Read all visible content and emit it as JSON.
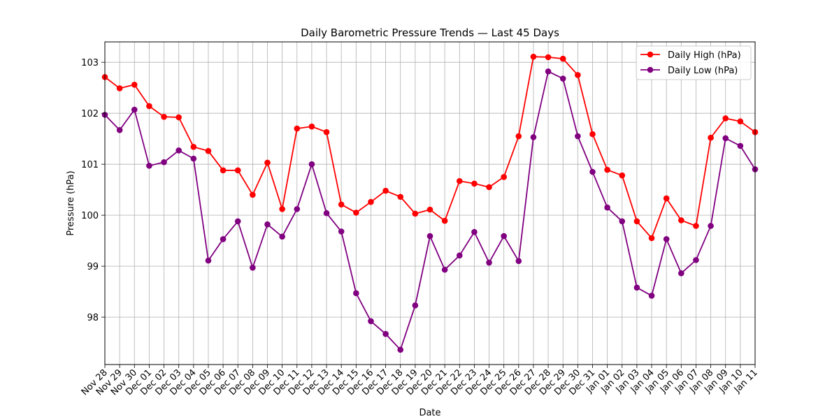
{
  "chart_data": {
    "type": "line",
    "title": "Daily Barometric Pressure Trends — Last 45 Days",
    "xlabel": "Date",
    "ylabel": "Pressure (hPa)",
    "ylim": [
      97.07,
      103.4
    ],
    "yticks": [
      98,
      99,
      100,
      101,
      102,
      103
    ],
    "grid": true,
    "legend_position": "top-right",
    "categories": [
      "Nov 28",
      "Nov 29",
      "Nov 30",
      "Dec 01",
      "Dec 02",
      "Dec 03",
      "Dec 04",
      "Dec 05",
      "Dec 06",
      "Dec 07",
      "Dec 08",
      "Dec 09",
      "Dec 10",
      "Dec 11",
      "Dec 12",
      "Dec 13",
      "Dec 14",
      "Dec 15",
      "Dec 16",
      "Dec 17",
      "Dec 18",
      "Dec 19",
      "Dec 20",
      "Dec 21",
      "Dec 22",
      "Dec 23",
      "Dec 24",
      "Dec 25",
      "Dec 26",
      "Dec 27",
      "Dec 28",
      "Dec 29",
      "Dec 30",
      "Dec 31",
      "Jan 01",
      "Jan 02",
      "Jan 03",
      "Jan 04",
      "Jan 05",
      "Jan 06",
      "Jan 07",
      "Jan 08",
      "Jan 09",
      "Jan 10",
      "Jan 11"
    ],
    "series": [
      {
        "name": "Daily High (hPa)",
        "color": "#ff0000",
        "values": [
          102.71,
          102.49,
          102.56,
          102.14,
          101.93,
          101.92,
          101.34,
          101.26,
          100.88,
          100.88,
          100.4,
          101.03,
          100.12,
          101.7,
          101.74,
          101.63,
          100.21,
          100.05,
          100.26,
          100.48,
          100.36,
          100.03,
          100.11,
          99.89,
          100.67,
          100.62,
          100.55,
          100.75,
          101.55,
          103.11,
          103.1,
          103.07,
          102.75,
          101.59,
          100.89,
          100.78,
          99.88,
          99.55,
          100.33,
          99.9,
          99.79,
          101.52,
          101.9,
          101.84,
          101.63
        ]
      },
      {
        "name": "Daily Low (hPa)",
        "color": "#800080",
        "values": [
          101.97,
          101.67,
          102.07,
          100.97,
          101.04,
          101.27,
          101.11,
          99.11,
          99.53,
          99.88,
          98.97,
          99.82,
          99.58,
          100.12,
          101.0,
          100.04,
          99.68,
          98.47,
          97.92,
          97.67,
          97.36,
          98.23,
          99.59,
          98.93,
          99.21,
          99.67,
          99.07,
          99.59,
          99.1,
          101.53,
          102.82,
          102.68,
          101.55,
          100.85,
          100.15,
          99.88,
          98.58,
          98.42,
          99.53,
          98.86,
          99.12,
          99.79,
          101.51,
          101.36,
          100.9
        ]
      }
    ]
  }
}
